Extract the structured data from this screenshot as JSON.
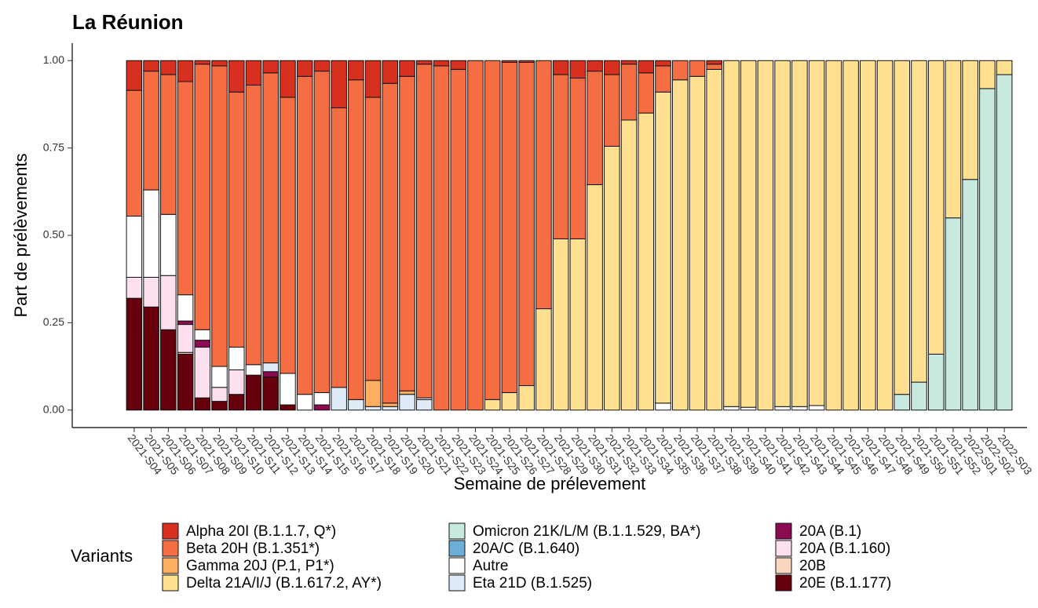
{
  "chart_data": {
    "type": "stacked_bar",
    "title": "La Réunion",
    "x_label": "Semaine de prélevement",
    "y_label": "Part de prélèvements",
    "legend_title": "Variants",
    "categories": [
      "2021-S04",
      "2021-S05",
      "2021-S06",
      "2021-S07",
      "2021-S08",
      "2021-S09",
      "2021-S10",
      "2021-S11",
      "2021-S12",
      "2021-S13",
      "2021-S14",
      "2021-S15",
      "2021-S16",
      "2021-S17",
      "2021-S18",
      "2021-S19",
      "2021-S20",
      "2021-S21",
      "2021-S22",
      "2021-S23",
      "2021-S24",
      "2021-S25",
      "2021-S26",
      "2021-S27",
      "2021-S28",
      "2021-S29",
      "2021-S30",
      "2021-S31",
      "2021-S32",
      "2021-S33",
      "2021-S34",
      "2021-S35",
      "2021-S36",
      "2021-S37",
      "2021-S38",
      "2021-S39",
      "2021-S40",
      "2021-S41",
      "2021-S42",
      "2021-S43",
      "2021-S44",
      "2021-S45",
      "2021-S46",
      "2021-S47",
      "2021-S48",
      "2021-S49",
      "2021-S50",
      "2021-S51",
      "2021-S52",
      "2022-S01",
      "2022-S02",
      "2022-S03"
    ],
    "ylim": [
      -0.05,
      1.05
    ],
    "yticks": [
      {
        "value": 0,
        "label": "0.00"
      },
      {
        "value": 0.25,
        "label": "0.25"
      },
      {
        "value": 0.5,
        "label": "0.50"
      },
      {
        "value": 0.75,
        "label": "0.75"
      },
      {
        "value": 1,
        "label": "1.00"
      }
    ],
    "series": [
      {
        "name": "Alpha 20I (B.1.1.7, Q*)",
        "color": "#d7301f",
        "values": [
          0.085,
          0.03,
          0.04,
          0.06,
          0.01,
          0.015,
          0.09,
          0.07,
          0.035,
          0.105,
          0.045,
          0.03,
          0.135,
          0.055,
          0.105,
          0.065,
          0.045,
          0.01,
          0.015,
          0.025,
          0,
          0,
          0.005,
          0.005,
          0,
          0.04,
          0.05,
          0.03,
          0.04,
          0.01,
          0.035,
          0.015,
          0,
          0,
          0.01,
          0,
          0,
          0,
          0,
          0,
          0,
          0,
          0,
          0,
          0,
          0,
          0,
          0,
          0,
          0,
          0,
          0
        ]
      },
      {
        "name": "Beta 20H (B.1.351*)",
        "color": "#f46d43",
        "values": [
          0.36,
          0.34,
          0.4,
          0.61,
          0.76,
          0.86,
          0.73,
          0.8,
          0.83,
          0.79,
          0.91,
          0.92,
          0.8,
          0.915,
          0.81,
          0.915,
          0.9,
          0.955,
          0.985,
          0.975,
          1,
          0.97,
          0.945,
          0.925,
          0.71,
          0.47,
          0.46,
          0.325,
          0.205,
          0.16,
          0.115,
          0.075,
          0.055,
          0.045,
          0.015,
          0,
          0,
          0,
          0,
          0,
          0,
          0,
          0,
          0,
          0,
          0,
          0,
          0,
          0,
          0,
          0,
          0
        ]
      },
      {
        "name": "Gamma 20J (P.1, P1*)",
        "color": "#fdae61",
        "values": [
          0,
          0,
          0,
          0,
          0,
          0,
          0,
          0,
          0,
          0,
          0,
          0,
          0,
          0,
          0.075,
          0.01,
          0.01,
          0,
          0,
          0,
          0,
          0,
          0,
          0,
          0,
          0,
          0,
          0,
          0,
          0,
          0,
          0,
          0,
          0,
          0,
          0,
          0,
          0,
          0,
          0,
          0,
          0,
          0,
          0,
          0,
          0,
          0,
          0,
          0,
          0,
          0,
          0
        ]
      },
      {
        "name": "Delta 21A/I/J (B.1.617.2, AY*)",
        "color": "#fee090",
        "values": [
          0,
          0,
          0,
          0,
          0,
          0,
          0,
          0,
          0,
          0,
          0,
          0,
          0,
          0,
          0,
          0,
          0,
          0,
          0,
          0,
          0,
          0.03,
          0.05,
          0.07,
          0.29,
          0.49,
          0.49,
          0.645,
          0.755,
          0.83,
          0.85,
          0.89,
          0.945,
          0.955,
          0.975,
          0.99,
          0.992,
          1,
          0.99,
          0.99,
          0.987,
          1,
          1,
          1,
          1,
          0.955,
          0.92,
          0.84,
          0.45,
          0.34,
          0.08,
          0.04
        ]
      },
      {
        "name": "Omicron 21K/L/M (B.1.1.529, BA*)",
        "color": "#c7e9e0",
        "values": [
          0,
          0,
          0,
          0,
          0,
          0,
          0,
          0,
          0,
          0,
          0,
          0,
          0,
          0,
          0,
          0,
          0,
          0,
          0,
          0,
          0,
          0,
          0,
          0,
          0,
          0,
          0,
          0,
          0,
          0,
          0,
          0,
          0,
          0,
          0,
          0,
          0,
          0,
          0,
          0,
          0,
          0,
          0,
          0,
          0,
          0.045,
          0.08,
          0.16,
          0.55,
          0.66,
          0.92,
          0.96
        ]
      },
      {
        "name": "20A/C (B.1.640)",
        "color": "#6baed6",
        "values": [
          0,
          0,
          0,
          0,
          0,
          0,
          0,
          0,
          0,
          0,
          0,
          0,
          0,
          0,
          0,
          0,
          0,
          0,
          0,
          0,
          0,
          0,
          0,
          0,
          0,
          0,
          0,
          0,
          0,
          0,
          0,
          0,
          0,
          0,
          0,
          0,
          0,
          0,
          0,
          0,
          0,
          0,
          0,
          0,
          0,
          0,
          0,
          0,
          0,
          0,
          0,
          0
        ]
      },
      {
        "name": "Autre",
        "color": "#ffffff",
        "values": [
          0.175,
          0.25,
          0.175,
          0.075,
          0.03,
          0.06,
          0.065,
          0.03,
          0,
          0.09,
          0.045,
          0.035,
          0,
          0,
          0,
          0,
          0,
          0.005,
          0,
          0,
          0,
          0,
          0,
          0,
          0,
          0,
          0,
          0,
          0,
          0,
          0,
          0.02,
          0,
          0,
          0,
          0.01,
          0.008,
          0,
          0.01,
          0.01,
          0.013,
          0,
          0,
          0,
          0,
          0,
          0,
          0,
          0,
          0,
          0,
          0
        ]
      },
      {
        "name": "Eta 21D (B.1.525)",
        "color": "#deebf7",
        "values": [
          0,
          0,
          0,
          0,
          0,
          0,
          0,
          0,
          0.025,
          0,
          0,
          0,
          0.065,
          0.03,
          0.01,
          0.01,
          0.045,
          0.03,
          0,
          0,
          0,
          0,
          0,
          0,
          0,
          0,
          0,
          0,
          0,
          0,
          0,
          0,
          0,
          0,
          0,
          0,
          0,
          0,
          0,
          0,
          0,
          0,
          0,
          0,
          0,
          0,
          0,
          0,
          0,
          0,
          0,
          0
        ]
      },
      {
        "name": "20A (B.1)",
        "color": "#8c0a52",
        "values": [
          0,
          0,
          0,
          0.01,
          0.02,
          0,
          0,
          0,
          0.015,
          0,
          0,
          0.015,
          0,
          0,
          0,
          0,
          0,
          0,
          0,
          0,
          0,
          0,
          0,
          0,
          0,
          0,
          0,
          0,
          0,
          0,
          0,
          0,
          0,
          0,
          0,
          0,
          0,
          0,
          0,
          0,
          0,
          0,
          0,
          0,
          0,
          0,
          0,
          0,
          0,
          0,
          0,
          0
        ]
      },
      {
        "name": "20A (B.1.160)",
        "color": "#fde0ef",
        "values": [
          0.06,
          0.085,
          0.155,
          0.08,
          0.145,
          0.04,
          0.07,
          0,
          0,
          0,
          0,
          0,
          0,
          0,
          0,
          0,
          0,
          0,
          0,
          0,
          0,
          0,
          0,
          0,
          0,
          0,
          0,
          0,
          0,
          0,
          0,
          0,
          0,
          0,
          0,
          0,
          0,
          0,
          0,
          0,
          0,
          0,
          0,
          0,
          0,
          0,
          0,
          0,
          0,
          0,
          0,
          0
        ]
      },
      {
        "name": "20B",
        "color": "#fcd5c0",
        "values": [
          0,
          0,
          0,
          0.005,
          0,
          0,
          0,
          0,
          0,
          0,
          0,
          0,
          0,
          0,
          0,
          0,
          0,
          0,
          0,
          0,
          0,
          0,
          0,
          0,
          0,
          0,
          0,
          0,
          0,
          0,
          0,
          0,
          0,
          0,
          0,
          0,
          0,
          0,
          0,
          0,
          0,
          0,
          0,
          0,
          0,
          0,
          0,
          0,
          0,
          0,
          0,
          0
        ]
      },
      {
        "name": "20E (B.1.177)",
        "color": "#67000d",
        "values": [
          0.32,
          0.295,
          0.23,
          0.16,
          0.035,
          0.025,
          0.045,
          0.1,
          0.095,
          0.015,
          0,
          0,
          0,
          0,
          0,
          0,
          0,
          0,
          0,
          0,
          0,
          0,
          0,
          0,
          0,
          0,
          0,
          0,
          0,
          0,
          0,
          0,
          0,
          0,
          0,
          0,
          0,
          0,
          0,
          0,
          0,
          0,
          0,
          0,
          0,
          0,
          0,
          0,
          0,
          0,
          0,
          0
        ]
      }
    ]
  }
}
